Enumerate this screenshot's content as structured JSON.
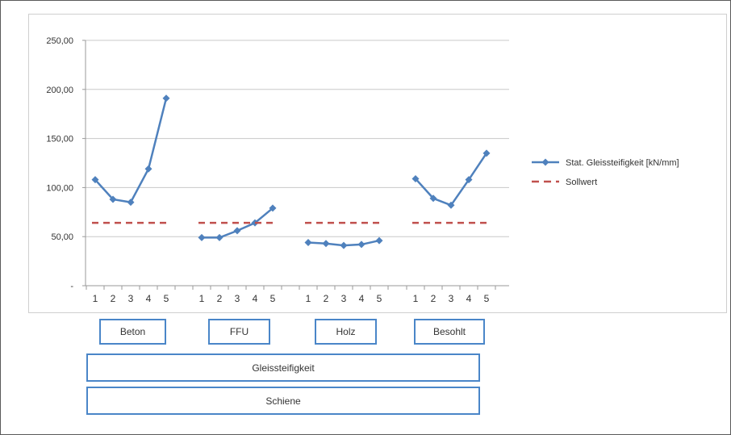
{
  "chart_data": {
    "type": "line",
    "title": "",
    "xlabel": "",
    "ylabel": "",
    "ylim": [
      0,
      250
    ],
    "y_ticks": [
      "-",
      "50,00",
      "100,00",
      "150,00",
      "200,00",
      "250,00"
    ],
    "grid": "horizontal",
    "legend_position": "right",
    "groups": [
      "Beton",
      "FFU",
      "Holz",
      "Besohlt"
    ],
    "x_ticks": [
      "1",
      "2",
      "3",
      "4",
      "5"
    ],
    "series": [
      {
        "name": "Stat. Gleissteifigkeit [kN/mm]",
        "color": "#4f81bd",
        "style": "solid-diamond",
        "values": [
          [
            108,
            88,
            85,
            119,
            191
          ],
          [
            49,
            49,
            56,
            64,
            79
          ],
          [
            44,
            43,
            41,
            42,
            46
          ],
          [
            109,
            89,
            82,
            108,
            135
          ]
        ]
      },
      {
        "name": "Sollwert",
        "color": "#c0504d",
        "style": "dashed",
        "values": [
          [
            64,
            64,
            64,
            64,
            64
          ],
          [
            64,
            64,
            64,
            64,
            64
          ],
          [
            64,
            64,
            64,
            64,
            64
          ],
          [
            64,
            64,
            64,
            64,
            64
          ]
        ]
      }
    ]
  },
  "category_boxes": {
    "level1": [
      "Beton",
      "FFU",
      "Holz",
      "Besohlt"
    ],
    "level2": "Gleissteifigkeit",
    "level3": "Schiene"
  }
}
